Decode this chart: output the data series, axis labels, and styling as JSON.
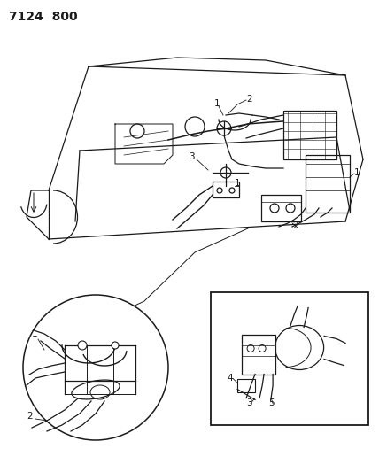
{
  "title": "7124  800",
  "bg_color": "#ffffff",
  "line_color": "#1a1a1a",
  "title_fontsize": 10,
  "fig_width": 4.28,
  "fig_height": 5.33,
  "dpi": 100
}
